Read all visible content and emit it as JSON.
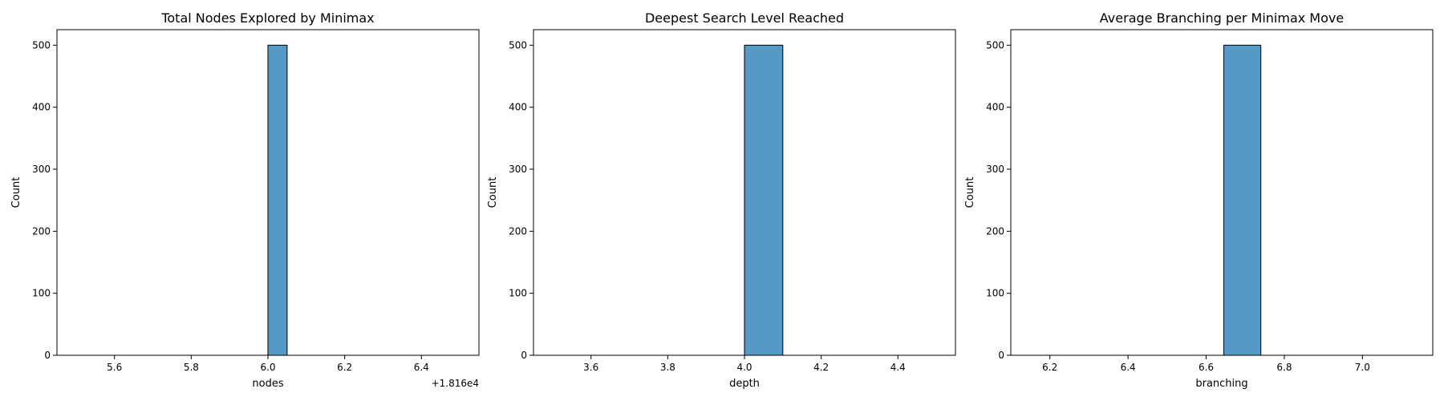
{
  "chart_data": [
    {
      "type": "bar",
      "title": "Total Nodes Explored by Minimax",
      "xlabel": "nodes",
      "ylabel": "Count",
      "x_offset_label": "+1.816e4",
      "xlim": [
        5.45,
        6.55
      ],
      "ylim": [
        0,
        525
      ],
      "xticks": [
        5.6,
        5.8,
        6.0,
        6.2,
        6.4
      ],
      "xtick_labels": [
        "5.6",
        "5.8",
        "6.0",
        "6.2",
        "6.4"
      ],
      "yticks": [
        0,
        100,
        200,
        300,
        400,
        500
      ],
      "ytick_labels": [
        "0",
        "100",
        "200",
        "300",
        "400",
        "500"
      ],
      "bins": [
        {
          "x_start": 6.0,
          "x_end": 6.05,
          "count": 500
        }
      ],
      "range_line": [
        5.5,
        6.5
      ],
      "bar_color": "#5799c6",
      "grid": false
    },
    {
      "type": "bar",
      "title": "Deepest Search Level Reached",
      "xlabel": "depth",
      "ylabel": "Count",
      "x_offset_label": "",
      "xlim": [
        3.45,
        4.55
      ],
      "ylim": [
        0,
        525
      ],
      "xticks": [
        3.6,
        3.8,
        4.0,
        4.2,
        4.4
      ],
      "xtick_labels": [
        "3.6",
        "3.8",
        "4.0",
        "4.2",
        "4.4"
      ],
      "yticks": [
        0,
        100,
        200,
        300,
        400,
        500
      ],
      "ytick_labels": [
        "0",
        "100",
        "200",
        "300",
        "400",
        "500"
      ],
      "bins": [
        {
          "x_start": 4.0,
          "x_end": 4.1,
          "count": 500
        }
      ],
      "range_line": [
        3.5,
        4.5
      ],
      "bar_color": "#5799c6",
      "grid": false
    },
    {
      "type": "bar",
      "title": "Average Branching per Minimax Move",
      "xlabel": "branching",
      "ylabel": "Count",
      "x_offset_label": "",
      "xlim": [
        6.1,
        7.18
      ],
      "ylim": [
        0,
        525
      ],
      "xticks": [
        6.2,
        6.4,
        6.6,
        6.8,
        7.0
      ],
      "xtick_labels": [
        "6.2",
        "6.4",
        "6.6",
        "6.8",
        "7.0"
      ],
      "yticks": [
        0,
        100,
        200,
        300,
        400,
        500
      ],
      "ytick_labels": [
        "0",
        "100",
        "200",
        "300",
        "400",
        "500"
      ],
      "bins": [
        {
          "x_start": 6.645,
          "x_end": 6.74,
          "count": 500
        }
      ],
      "range_line": [
        6.15,
        7.15
      ],
      "bar_color": "#5799c6",
      "grid": false
    }
  ]
}
